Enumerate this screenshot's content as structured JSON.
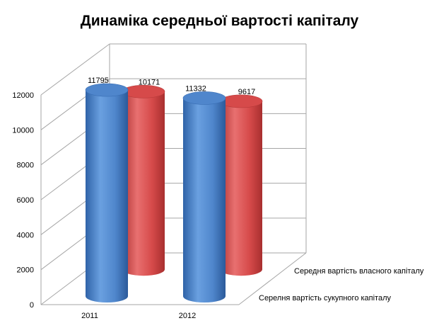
{
  "chart_data": {
    "type": "bar",
    "title": "Динаміка середньої вартості капіталу",
    "categories": [
      "2011",
      "2012"
    ],
    "series": [
      {
        "name": "Серелня вартість сукупного капіталу",
        "values": [
          11795,
          11332
        ],
        "color": "#4f86cc"
      },
      {
        "name": "Середня вартість власного капіталу",
        "values": [
          10171,
          9617
        ],
        "color": "#d64a4a"
      }
    ],
    "yticks": [
      0,
      2000,
      4000,
      6000,
      8000,
      10000,
      12000
    ],
    "ylim": [
      0,
      12000
    ],
    "grid": true,
    "style": "3d-cylinder"
  }
}
